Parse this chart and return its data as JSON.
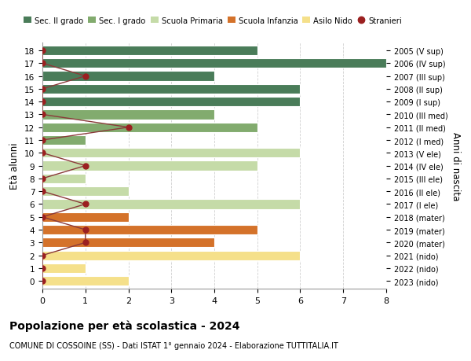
{
  "ages": [
    18,
    17,
    16,
    15,
    14,
    13,
    12,
    11,
    10,
    9,
    8,
    7,
    6,
    5,
    4,
    3,
    2,
    1,
    0
  ],
  "years": [
    "2005 (V sup)",
    "2006 (IV sup)",
    "2007 (III sup)",
    "2008 (II sup)",
    "2009 (I sup)",
    "2010 (III med)",
    "2011 (II med)",
    "2012 (I med)",
    "2013 (V ele)",
    "2014 (IV ele)",
    "2015 (III ele)",
    "2016 (II ele)",
    "2017 (I ele)",
    "2018 (mater)",
    "2019 (mater)",
    "2020 (mater)",
    "2021 (nido)",
    "2022 (nido)",
    "2023 (nido)"
  ],
  "values": [
    5,
    8,
    4,
    6,
    6,
    4,
    5,
    1,
    6,
    5,
    1,
    2,
    6,
    2,
    5,
    4,
    6,
    1,
    2
  ],
  "stranieri": [
    0,
    0,
    1,
    0,
    0,
    0,
    2,
    0,
    0,
    1,
    0,
    0,
    1,
    0,
    1,
    1,
    0,
    0,
    0
  ],
  "bar_colors": [
    "#4a7c59",
    "#4a7c59",
    "#4a7c59",
    "#4a7c59",
    "#4a7c59",
    "#82ab6e",
    "#82ab6e",
    "#82ab6e",
    "#c5dba8",
    "#c5dba8",
    "#c5dba8",
    "#c5dba8",
    "#c5dba8",
    "#d4722a",
    "#d4722a",
    "#d4722a",
    "#f5e08a",
    "#f5e08a",
    "#f5e08a"
  ],
  "stranieri_color": "#9b2020",
  "stranieri_line_color": "#8b3a3a",
  "title": "Popolazione per età scolastica - 2024",
  "subtitle": "COMUNE DI COSSOINE (SS) - Dati ISTAT 1° gennaio 2024 - Elaborazione TUTTITALIA.IT",
  "ylabel": "Età alunni",
  "ylabel_right": "Anni di nascita",
  "xlim": [
    0,
    8
  ],
  "legend_labels": [
    "Sec. II grado",
    "Sec. I grado",
    "Scuola Primaria",
    "Scuola Infanzia",
    "Asilo Nido",
    "Stranieri"
  ],
  "legend_colors": [
    "#4a7c59",
    "#82ab6e",
    "#c5dba8",
    "#d4722a",
    "#f5e08a",
    "#9b2020"
  ],
  "background_color": "#ffffff",
  "grid_color": "#d0d0d0"
}
